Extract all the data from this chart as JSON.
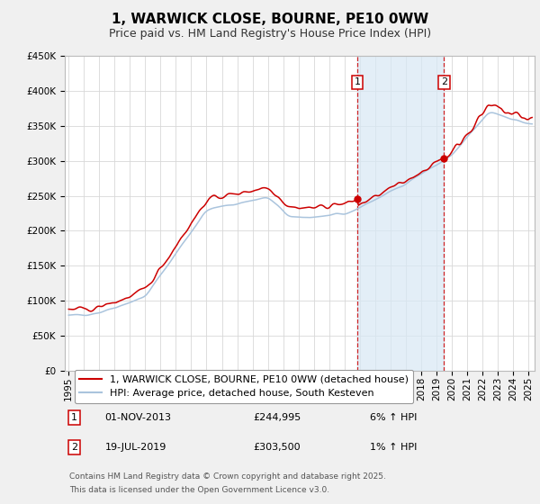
{
  "title": "1, WARWICK CLOSE, BOURNE, PE10 0WW",
  "subtitle": "Price paid vs. HM Land Registry's House Price Index (HPI)",
  "ylim": [
    0,
    450000
  ],
  "yticks": [
    0,
    50000,
    100000,
    150000,
    200000,
    250000,
    300000,
    350000,
    400000,
    450000
  ],
  "ytick_labels": [
    "£0",
    "£50K",
    "£100K",
    "£150K",
    "£200K",
    "£250K",
    "£300K",
    "£350K",
    "£400K",
    "£450K"
  ],
  "hpi_color": "#aac4dd",
  "price_color": "#cc0000",
  "marker_color": "#cc0000",
  "vline_color": "#cc0000",
  "shade_color": "#d8e8f5",
  "sale1_price": 244995,
  "sale1_label": "1",
  "sale1_date": "01-NOV-2013",
  "sale1_pct": "6% ↑ HPI",
  "sale2_price": 303500,
  "sale2_label": "2",
  "sale2_date": "19-JUL-2019",
  "sale2_pct": "1% ↑ HPI",
  "legend_line1": "1, WARWICK CLOSE, BOURNE, PE10 0WW (detached house)",
  "legend_line2": "HPI: Average price, detached house, South Kesteven",
  "footer1": "Contains HM Land Registry data © Crown copyright and database right 2025.",
  "footer2": "This data is licensed under the Open Government Licence v3.0.",
  "background_color": "#f0f0f0",
  "plot_background": "#ffffff",
  "grid_color": "#d8d8d8",
  "title_fontsize": 11,
  "subtitle_fontsize": 9,
  "tick_fontsize": 7.5,
  "legend_fontsize": 8,
  "footer_fontsize": 6.5
}
